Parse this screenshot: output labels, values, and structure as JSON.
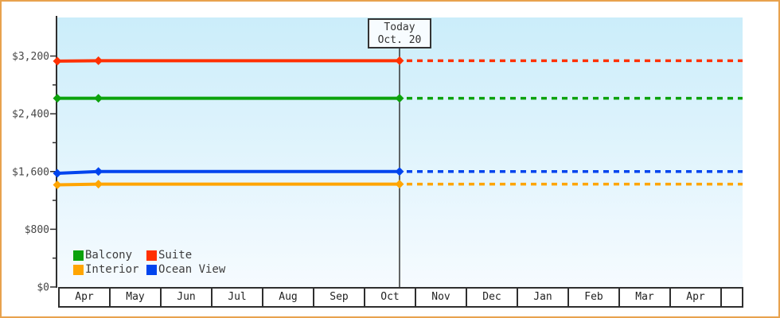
{
  "colors": {
    "frame_border": "#E8A24D",
    "plot_bg_top": "#CBEDFA",
    "plot_bg_bottom": "#F6FBFF",
    "axis": "#2F2F2F",
    "text": "#474747",
    "today_line": "#333333"
  },
  "chart_data": {
    "type": "line",
    "title": "",
    "x_axis": {
      "categories": [
        "Apr",
        "May",
        "Jun",
        "Jul",
        "Aug",
        "Sep",
        "Oct",
        "Nov",
        "Dec",
        "Jan",
        "Feb",
        "Mar",
        "Apr"
      ]
    },
    "y_axis": {
      "major_ticks": [
        {
          "value": 3200,
          "label": "$3,200"
        },
        {
          "value": 2400,
          "label": "$2,400"
        },
        {
          "value": 1600,
          "label": "$1,600"
        },
        {
          "value": 800,
          "label": "$800"
        },
        {
          "value": 0,
          "label": "$0"
        }
      ],
      "minor_ticks": [
        400,
        1200,
        2000,
        2800
      ],
      "ylim": [
        0,
        3730
      ],
      "grid": "off"
    },
    "today": {
      "label_line1": "Today",
      "label_line2": "Oct. 20",
      "x_frac": 0.4994
    },
    "legend_position": "bottom-left inside plot",
    "forecast_style": "dashed after today",
    "series": [
      {
        "name": "Balcony",
        "color": "#0CA20C",
        "points": [
          {
            "x_frac": 0.0,
            "value": 2615
          },
          {
            "x_frac": 0.06,
            "value": 2615
          },
          {
            "x_frac": 0.4994,
            "value": 2615
          }
        ],
        "forecast_value": 2615
      },
      {
        "name": "Suite",
        "color": "#FF3000",
        "points": [
          {
            "x_frac": 0.0,
            "value": 3130
          },
          {
            "x_frac": 0.06,
            "value": 3135
          },
          {
            "x_frac": 0.4994,
            "value": 3135
          }
        ],
        "forecast_value": 3135
      },
      {
        "name": "Interior",
        "color": "#FFA502",
        "points": [
          {
            "x_frac": 0.0,
            "value": 1415
          },
          {
            "x_frac": 0.06,
            "value": 1425
          },
          {
            "x_frac": 0.4994,
            "value": 1425
          }
        ],
        "forecast_value": 1425
      },
      {
        "name": "Ocean View",
        "color": "#0044EE",
        "points": [
          {
            "x_frac": 0.0,
            "value": 1575
          },
          {
            "x_frac": 0.06,
            "value": 1600
          },
          {
            "x_frac": 0.4994,
            "value": 1600
          }
        ],
        "forecast_value": 1600
      }
    ]
  }
}
